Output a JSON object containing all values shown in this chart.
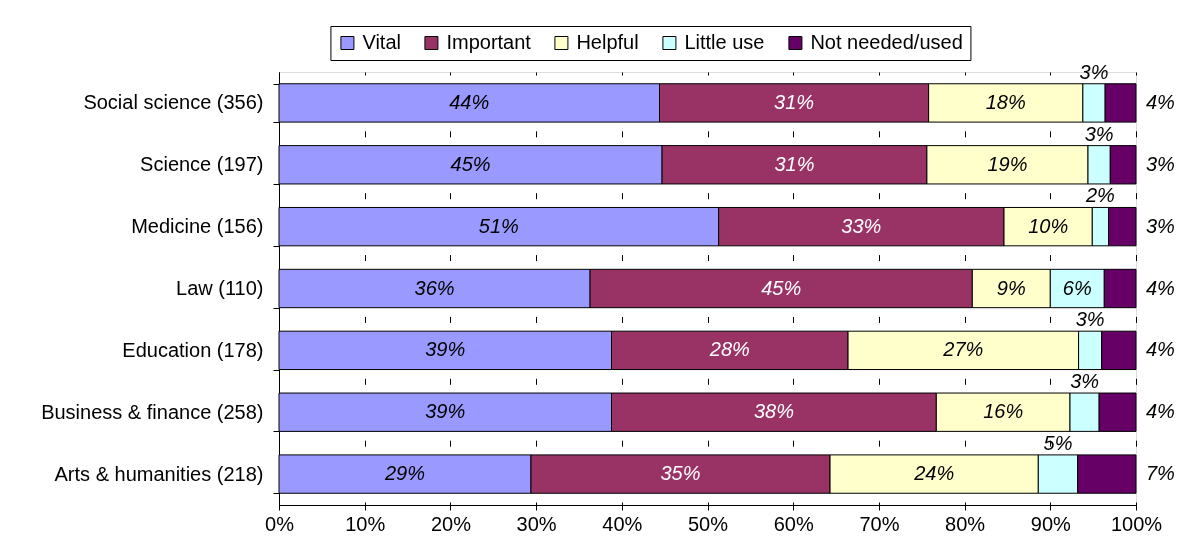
{
  "chart_data": {
    "type": "bar",
    "orientation": "horizontal",
    "stacked": true,
    "categories": [
      "Social science (356)",
      "Science (197)",
      "Medicine (156)",
      "Law (110)",
      "Education (178)",
      "Business & finance (258)",
      "Arts & humanities (218)"
    ],
    "series": [
      {
        "name": "Vital",
        "color": "#9999ff",
        "values": [
          44.4,
          44.7,
          51.3,
          36.3,
          38.8,
          38.8,
          29.4
        ],
        "value_labels": [
          "44%",
          "45%",
          "51%",
          "36%",
          "39%",
          "39%",
          "29%"
        ]
      },
      {
        "name": "Important",
        "color": "#993366",
        "values": [
          31.4,
          30.9,
          33.3,
          44.6,
          27.6,
          37.9,
          34.9
        ],
        "value_labels": [
          "31%",
          "31%",
          "33%",
          "45%",
          "28%",
          "38%",
          "35%"
        ]
      },
      {
        "name": "Helpful",
        "color": "#ffffcc",
        "values": [
          18.0,
          18.8,
          10.3,
          9.1,
          26.9,
          15.6,
          24.3
        ],
        "value_labels": [
          "18%",
          "19%",
          "10%",
          "9%",
          "27%",
          "16%",
          "24%"
        ]
      },
      {
        "name": "Little use",
        "color": "#ccffff",
        "values": [
          2.6,
          2.6,
          1.9,
          6.3,
          2.7,
          3.4,
          4.6
        ],
        "value_labels": [
          "3%",
          "3%",
          "2%",
          "6%",
          "3%",
          "3%",
          "5%"
        ]
      },
      {
        "name": "Not needed/used",
        "color": "#660066",
        "values": [
          3.6,
          3.0,
          3.2,
          3.7,
          4.0,
          4.3,
          6.8
        ],
        "value_labels": [
          "4%",
          "3%",
          "3%",
          "4%",
          "4%",
          "4%",
          "7%"
        ]
      }
    ],
    "xlim": [
      0,
      100
    ],
    "xticks": [
      {
        "value": 0,
        "label": "0%"
      },
      {
        "value": 10,
        "label": "10%"
      },
      {
        "value": 20,
        "label": "20%"
      },
      {
        "value": 30,
        "label": "30%"
      },
      {
        "value": 40,
        "label": "40%"
      },
      {
        "value": 50,
        "label": "50%"
      },
      {
        "value": 60,
        "label": "60%"
      },
      {
        "value": 70,
        "label": "70%"
      },
      {
        "value": 80,
        "label": "80%"
      },
      {
        "value": 90,
        "label": "90%"
      },
      {
        "value": 100,
        "label": "100%"
      }
    ],
    "grid": "x",
    "legend": "top"
  }
}
